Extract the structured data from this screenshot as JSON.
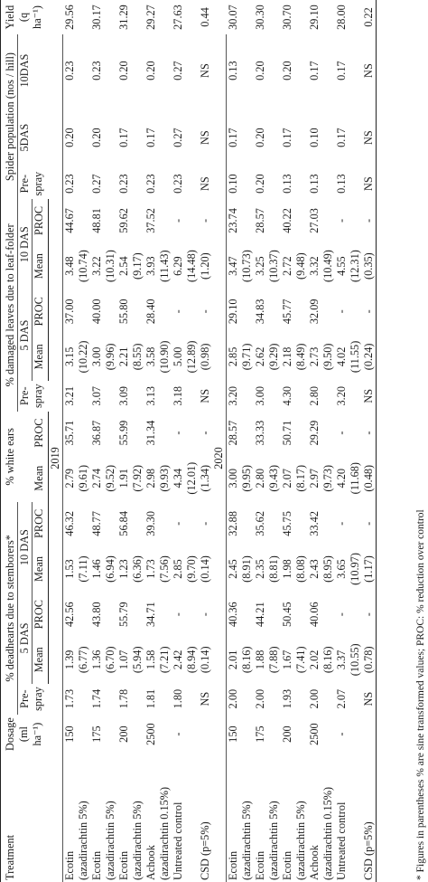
{
  "headers": {
    "treatment": "Treatment",
    "dosage": "Dosage (ml ha⁻¹)",
    "deadhearts": "% deadhearts due to stemborers*",
    "whiteears": "% white ears",
    "leaffolder": "% damaged leaves due to leaf-folder",
    "spider": "Spider population (nos / hill)",
    "yield": "Yield (q ha⁻¹)",
    "prespray": "Pre-spray",
    "das5": "5 DAS",
    "das10": "10 DAS",
    "mean": "Mean",
    "proc": "PROC",
    "s5": "5DAS",
    "s10": "10DAS"
  },
  "groups": [
    {
      "year": "2019",
      "rows": [
        {
          "trt": "Ecotin",
          "sub": "(azadirachtin 5%)",
          "dose": "150",
          "dh": [
            "1.73",
            "1.39",
            "42.56",
            "1.53",
            "46.32"
          ],
          "dh_t": [
            "(6.77)",
            "(7.11)"
          ],
          "we": [
            "2.79",
            "35.71"
          ],
          "we_t": "(9.61)",
          "lf": [
            "3.21",
            "3.15",
            "37.00",
            "3.48",
            "44.67"
          ],
          "lf_t": [
            "(10.22)",
            "(10.74)"
          ],
          "sp": [
            "0.23",
            "0.20",
            "0.23"
          ],
          "yield": "29.56"
        },
        {
          "trt": "Ecotin",
          "sub": "(azadirachtin 5%)",
          "dose": "175",
          "dh": [
            "1.74",
            "1.36",
            "43.80",
            "1.46",
            "48.77"
          ],
          "dh_t": [
            "(6.70)",
            "(6.94)"
          ],
          "we": [
            "2.74",
            "36.87"
          ],
          "we_t": "(9.52)",
          "lf": [
            "3.07",
            "3.00",
            "40.00",
            "3.22",
            "48.81"
          ],
          "lf_t": [
            "(9.96)",
            "(10.31)"
          ],
          "sp": [
            "0.27",
            "0.20",
            "0.23"
          ],
          "yield": "30.17"
        },
        {
          "trt": "Ecotin",
          "sub": "(azadirachtin 5%)",
          "dose": "200",
          "dh": [
            "1.78",
            "1.07",
            "55.79",
            "1.23",
            "56.84"
          ],
          "dh_t": [
            "(5.94)",
            "(6.36)"
          ],
          "we": [
            "1.91",
            "55.99"
          ],
          "we_t": "(7.92)",
          "lf": [
            "3.09",
            "2.21",
            "55.80",
            "2.54",
            "59.62"
          ],
          "lf_t": [
            "(8.55)",
            "(9.17)"
          ],
          "sp": [
            "0.23",
            "0.17",
            "0.20"
          ],
          "yield": "31.29"
        },
        {
          "trt": "Achook",
          "sub": "(azadirachtin 0.15%)",
          "dose": "2500",
          "dh": [
            "1.81",
            "1.58",
            "34.71",
            "1.73",
            "39.30"
          ],
          "dh_t": [
            "(7.21)",
            "(7.56)"
          ],
          "we": [
            "2.98",
            "31.34"
          ],
          "we_t": "(9.93)",
          "lf": [
            "3.13",
            "3.58",
            "28.40",
            "3.93",
            "37.52"
          ],
          "lf_t": [
            "(10.90)",
            "(11.43)"
          ],
          "sp": [
            "0.23",
            "0.17",
            "0.20"
          ],
          "yield": "29.27"
        },
        {
          "trt": "Untreated control",
          "sub": "",
          "dose": "-",
          "dh": [
            "1.80",
            "2.42",
            "-",
            "2.85",
            "-"
          ],
          "dh_t": [
            "(8.94)",
            "(9.70)"
          ],
          "we": [
            "4.34",
            "-"
          ],
          "we_t": "(12.01)",
          "lf": [
            "3.18",
            "5.00",
            "-",
            "6.29",
            "-"
          ],
          "lf_t": [
            "(12.89)",
            "(14.48)"
          ],
          "sp": [
            "0.23",
            "0.27",
            "0.27"
          ],
          "yield": "27.63"
        },
        {
          "trt": "CSD (p=5%)",
          "sub": "",
          "dose": "",
          "dh": [
            "NS",
            "(0.14)",
            "-",
            "(0.14)",
            "-"
          ],
          "dh_t": [],
          "we": [
            "(1.34)",
            "-"
          ],
          "we_t": "",
          "lf": [
            "NS",
            "(0.98)",
            "-",
            "(1.20)",
            "-"
          ],
          "lf_t": [],
          "sp": [
            "NS",
            "NS",
            "NS"
          ],
          "yield": "0.44"
        }
      ]
    },
    {
      "year": "2020",
      "rows": [
        {
          "trt": "Ecotin",
          "sub": "(azadirachtin 5%)",
          "dose": "150",
          "dh": [
            "2.00",
            "2.01",
            "40.36",
            "2.45",
            "32.88"
          ],
          "dh_t": [
            "(8.16)",
            "(8.91)"
          ],
          "we": [
            "3.00",
            "28.57"
          ],
          "we_t": "(9.95)",
          "lf": [
            "3.20",
            "2.85",
            "29.10",
            "3.47",
            "23.74"
          ],
          "lf_t": [
            "(9.71)",
            "(10.73)"
          ],
          "sp": [
            "0.10",
            "0.17",
            "0.13"
          ],
          "yield": "30.07"
        },
        {
          "trt": "Ecotin",
          "sub": "(azadirachtin 5%)",
          "dose": "175",
          "dh": [
            "2.00",
            "1.88",
            "44.21",
            "2.35",
            "35.62"
          ],
          "dh_t": [
            "(7.88)",
            "(8.81)"
          ],
          "we": [
            "2.80",
            "33.33"
          ],
          "we_t": "(9.43)",
          "lf": [
            "3.00",
            "2.62",
            "34.83",
            "3.25",
            "28.57"
          ],
          "lf_t": [
            "(9.29)",
            "(10.37)"
          ],
          "sp": [
            "0.20",
            "0.20",
            "0.20"
          ],
          "yield": "30.30"
        },
        {
          "trt": "Ecotin",
          "sub": "(azadirachtin 5%)",
          "dose": "200",
          "dh": [
            "1.93",
            "1.67",
            "50.45",
            "1.98",
            "45.75"
          ],
          "dh_t": [
            "(7.41)",
            "(8.08)"
          ],
          "we": [
            "2.07",
            "50.71"
          ],
          "we_t": "(8.17)",
          "lf": [
            "4.30",
            "2.18",
            "45.77",
            "2.72",
            "40.22"
          ],
          "lf_t": [
            "(8.49)",
            "(9.48)"
          ],
          "sp": [
            "0.13",
            "0.17",
            "0.20"
          ],
          "yield": "30.70"
        },
        {
          "trt": "Achook",
          "sub": "(azadirachtin 0.15%)",
          "dose": "2500",
          "dh": [
            "2.00",
            "2.02",
            "40.06",
            "2.43",
            "33.42"
          ],
          "dh_t": [
            "(8.16)",
            "(8.95)"
          ],
          "we": [
            "2.97",
            "29.29"
          ],
          "we_t": "(9.73)",
          "lf": [
            "2.80",
            "2.73",
            "32.09",
            "3.32",
            "27.03"
          ],
          "lf_t": [
            "(9.50)",
            "(10.49)"
          ],
          "sp": [
            "0.13",
            "0.10",
            "0.17"
          ],
          "yield": "29.10"
        },
        {
          "trt": "Untreated control",
          "sub": "",
          "dose": "-",
          "dh": [
            "2.07",
            "3.37",
            "-",
            "3.65",
            "-"
          ],
          "dh_t": [
            "(10.55)",
            "(10.97)"
          ],
          "we": [
            "4.20",
            "-"
          ],
          "we_t": "(11.68)",
          "lf": [
            "3.20",
            "4.02",
            "-",
            "4.55",
            "-"
          ],
          "lf_t": [
            "(11.55)",
            "(12.31)"
          ],
          "sp": [
            "0.13",
            "0.17",
            "0.17"
          ],
          "yield": "28.00"
        },
        {
          "trt": "CSD (p=5%)",
          "sub": "",
          "dose": "",
          "dh": [
            "NS",
            "(0.78)",
            "-",
            "(1.17)",
            "-"
          ],
          "dh_t": [],
          "we": [
            "(0.48)",
            "-"
          ],
          "we_t": "",
          "lf": [
            "NS",
            "(0.24)",
            "-",
            "(0.35)",
            "-"
          ],
          "lf_t": [],
          "sp": [
            "NS",
            "NS",
            "NS"
          ],
          "yield": "0.22"
        }
      ]
    }
  ],
  "footnote": "* Figures in parentheses % are sine transformed values; PROC: % reduction over control"
}
